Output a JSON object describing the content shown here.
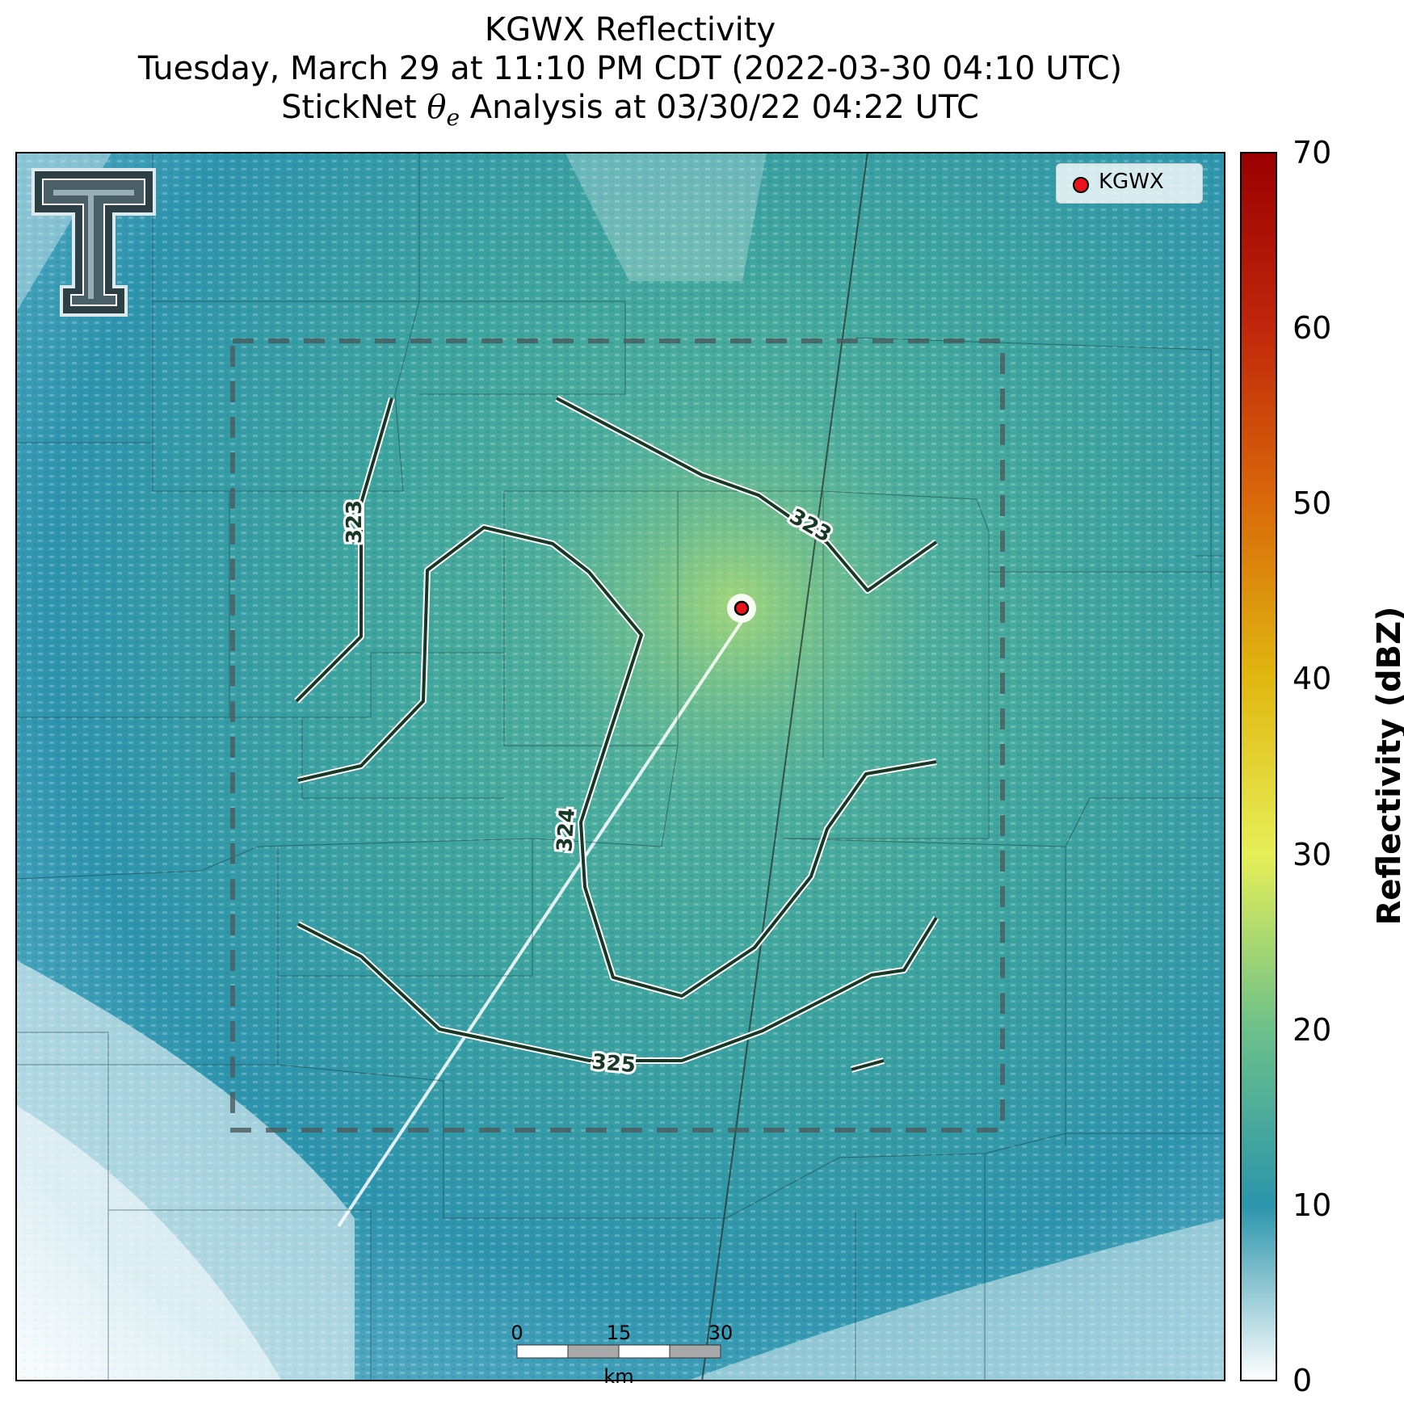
{
  "title": {
    "line1": "KGWX Reflectivity",
    "line2": "Tuesday, March 29 at 11:10 PM CDT (2022-03-30 04:10 UTC)",
    "line3_prefix": "StickNet ",
    "line3_theta": "θ",
    "line3_sub": "e",
    "line3_suffix": " Analysis at 03/30/22 04:22 UTC"
  },
  "legend": {
    "label": "KGWX"
  },
  "logo": {
    "name": "texas-tech-double-t-logo"
  },
  "colorbar": {
    "label": "Reflectivity (dBZ)",
    "ticks": [
      "0",
      "10",
      "20",
      "30",
      "40",
      "50",
      "60",
      "70"
    ],
    "min": 0,
    "max": 70,
    "colors": [
      "#ffffff",
      "#2b95ab",
      "#6cc08b",
      "#e6ef57",
      "#e0b80f",
      "#d96a0a",
      "#c0270b",
      "#9a0000"
    ]
  },
  "scalebar": {
    "ticks": [
      "0",
      "15",
      "30"
    ],
    "unit": "km"
  },
  "contour_labels": [
    "323",
    "323",
    "324",
    "325"
  ],
  "chart_data": {
    "type": "heatmap",
    "title": "KGWX Reflectivity",
    "colorbar_label": "Reflectivity (dBZ)",
    "range": [
      0,
      70
    ],
    "contours": [
      {
        "value": 323,
        "label": "323"
      },
      {
        "value": 323,
        "label": "323"
      },
      {
        "value": 324,
        "label": "324"
      },
      {
        "value": 325,
        "label": "325"
      }
    ],
    "radar_site": "KGWX",
    "analysis_box": "dashed",
    "legend_position": "top-right"
  }
}
